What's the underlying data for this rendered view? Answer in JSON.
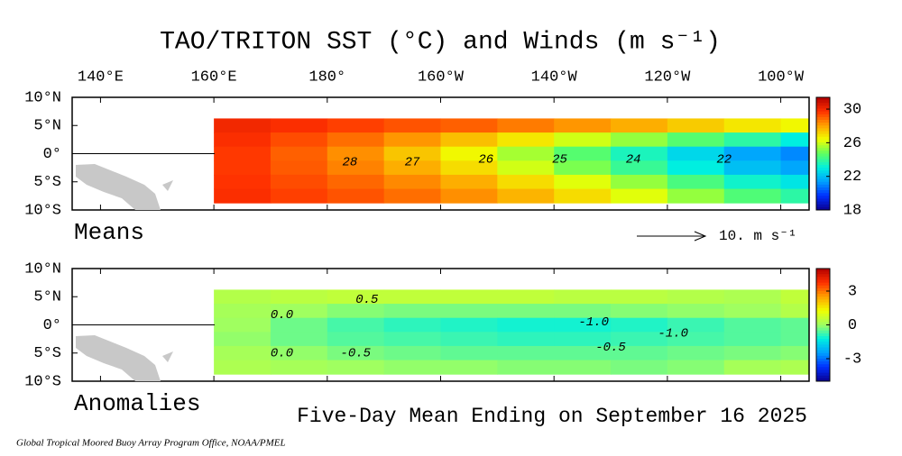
{
  "title": "TAO/TRITON SST (°C) and Winds (m s⁻¹)",
  "caption": "Five-Day Mean Ending on September 16 2025",
  "credit": "Global Tropical Moored Buoy Array Program Office, NOAA/PMEL",
  "chart_data": [
    {
      "type": "contour",
      "label": "Means",
      "wind_scale": "10.  m s⁻¹",
      "xlim": [
        135,
        265
      ],
      "ylim": [
        -10,
        10
      ],
      "xticks": [
        {
          "value": 140,
          "label": "140°E"
        },
        {
          "value": 160,
          "label": "160°E"
        },
        {
          "value": 180,
          "label": "180°"
        },
        {
          "value": 200,
          "label": "160°W"
        },
        {
          "value": 220,
          "label": "140°W"
        },
        {
          "value": 240,
          "label": "120°W"
        },
        {
          "value": 260,
          "label": "100°W"
        }
      ],
      "yticks": [
        {
          "value": 10,
          "label": "10°N"
        },
        {
          "value": 5,
          "label": "5°N"
        },
        {
          "value": 0,
          "label": "0°"
        },
        {
          "value": -5,
          "label": "5°S"
        },
        {
          "value": -10,
          "label": "10°S"
        }
      ],
      "clim": [
        18,
        31.4
      ],
      "cticks": [
        18,
        22,
        26,
        30
      ],
      "colors": [
        "#0a0090",
        "#0030ff",
        "#00a0ff",
        "#00f0e0",
        "#60ff60",
        "#f0ff00",
        "#ffa000",
        "#ff3000",
        "#b00000"
      ],
      "field": {
        "x": [
          165,
          175,
          185,
          195,
          205,
          215,
          225,
          235,
          245,
          255,
          265
        ],
        "y": [
          5,
          2.5,
          0,
          -2.5,
          -5,
          -7.5
        ],
        "z": [
          [
            30,
            29.8,
            29.5,
            29.2,
            29,
            28.6,
            28.2,
            27.8,
            27.3,
            26.8,
            26.5
          ],
          [
            29.8,
            29.3,
            28.8,
            28.2,
            27.5,
            26.8,
            26,
            25.3,
            24.5,
            23.8,
            23
          ],
          [
            29.6,
            29,
            28.3,
            27.4,
            26.5,
            25.5,
            24.5,
            23.5,
            22.5,
            21.5,
            21
          ],
          [
            29.6,
            29.1,
            28.5,
            27.8,
            27,
            26,
            25,
            24,
            23,
            22,
            21.5
          ],
          [
            29.7,
            29.3,
            28.9,
            28.4,
            27.8,
            27,
            26.2,
            25.3,
            24.3,
            23.3,
            22.8
          ],
          [
            29.8,
            29.5,
            29.2,
            28.8,
            28.3,
            27.7,
            27,
            26.2,
            25.3,
            24.4,
            23.8
          ]
        ]
      },
      "contour_labels": [
        {
          "value": 28,
          "lon": 184,
          "lat": -1.5
        },
        {
          "value": 27,
          "lon": 195,
          "lat": -1.5
        },
        {
          "value": 26,
          "lon": 208,
          "lat": -1
        },
        {
          "value": 25,
          "lon": 221,
          "lat": -1
        },
        {
          "value": 24,
          "lon": 234,
          "lat": -1
        },
        {
          "value": 22,
          "lon": 250,
          "lat": -1
        }
      ]
    },
    {
      "type": "contour",
      "label": "Anomalies",
      "xlim": [
        135,
        265
      ],
      "ylim": [
        -10,
        10
      ],
      "xticks": [
        140,
        160,
        180,
        200,
        220,
        240,
        260
      ],
      "yticks": [
        {
          "value": 10,
          "label": "10°N"
        },
        {
          "value": 5,
          "label": "5°N"
        },
        {
          "value": 0,
          "label": "0°"
        },
        {
          "value": -5,
          "label": "5°S"
        },
        {
          "value": -10,
          "label": "10°S"
        }
      ],
      "clim": [
        -5,
        5
      ],
      "cticks": [
        -3,
        0,
        3
      ],
      "colors": [
        "#0a0090",
        "#0030ff",
        "#00a0ff",
        "#00f0e0",
        "#a0ff60",
        "#f0ff00",
        "#ffa000",
        "#ff3000",
        "#b00000"
      ],
      "field": {
        "x": [
          165,
          175,
          185,
          195,
          205,
          215,
          225,
          235,
          245,
          255,
          265
        ],
        "y": [
          5,
          2.5,
          0,
          -2.5,
          -5,
          -7.5
        ],
        "z": [
          [
            0.3,
            0.4,
            0.5,
            0.5,
            0.5,
            0.5,
            0.4,
            0.4,
            0.3,
            0.2,
            0.5
          ],
          [
            0.1,
            0,
            -0.2,
            -0.3,
            -0.3,
            -0.3,
            -0.3,
            -0.2,
            -0.1,
            0,
            0.3
          ],
          [
            0,
            -0.4,
            -0.7,
            -0.9,
            -1,
            -1.1,
            -1.1,
            -1,
            -0.8,
            -0.6,
            -0.5
          ],
          [
            -0.1,
            -0.4,
            -0.6,
            -0.7,
            -0.8,
            -0.9,
            -0.9,
            -0.8,
            -0.7,
            -0.6,
            -0.5
          ],
          [
            0.1,
            -0.1,
            -0.3,
            -0.4,
            -0.5,
            -0.5,
            -0.5,
            -0.5,
            -0.4,
            -0.3,
            -0.2
          ],
          [
            0.2,
            0.1,
            0,
            -0.1,
            -0.1,
            -0.2,
            -0.2,
            -0.3,
            -0.2,
            0.1,
            0.2
          ]
        ]
      },
      "contour_labels": [
        {
          "value": 0.5,
          "label": "0.5",
          "lon": 187,
          "lat": 4.5
        },
        {
          "value": 0,
          "label": "0.0",
          "lon": 172,
          "lat": 1.8
        },
        {
          "value": -1,
          "label": "-1.0",
          "lon": 227,
          "lat": 0.5
        },
        {
          "value": -1,
          "label": "-1.0",
          "lon": 241,
          "lat": -1.5
        },
        {
          "value": -0.5,
          "label": "-0.5",
          "lon": 185,
          "lat": -5
        },
        {
          "value": -0.5,
          "label": "-0.5",
          "lon": 230,
          "lat": -4
        },
        {
          "value": 0,
          "label": "0.0",
          "lon": 172,
          "lat": -5
        }
      ]
    }
  ]
}
